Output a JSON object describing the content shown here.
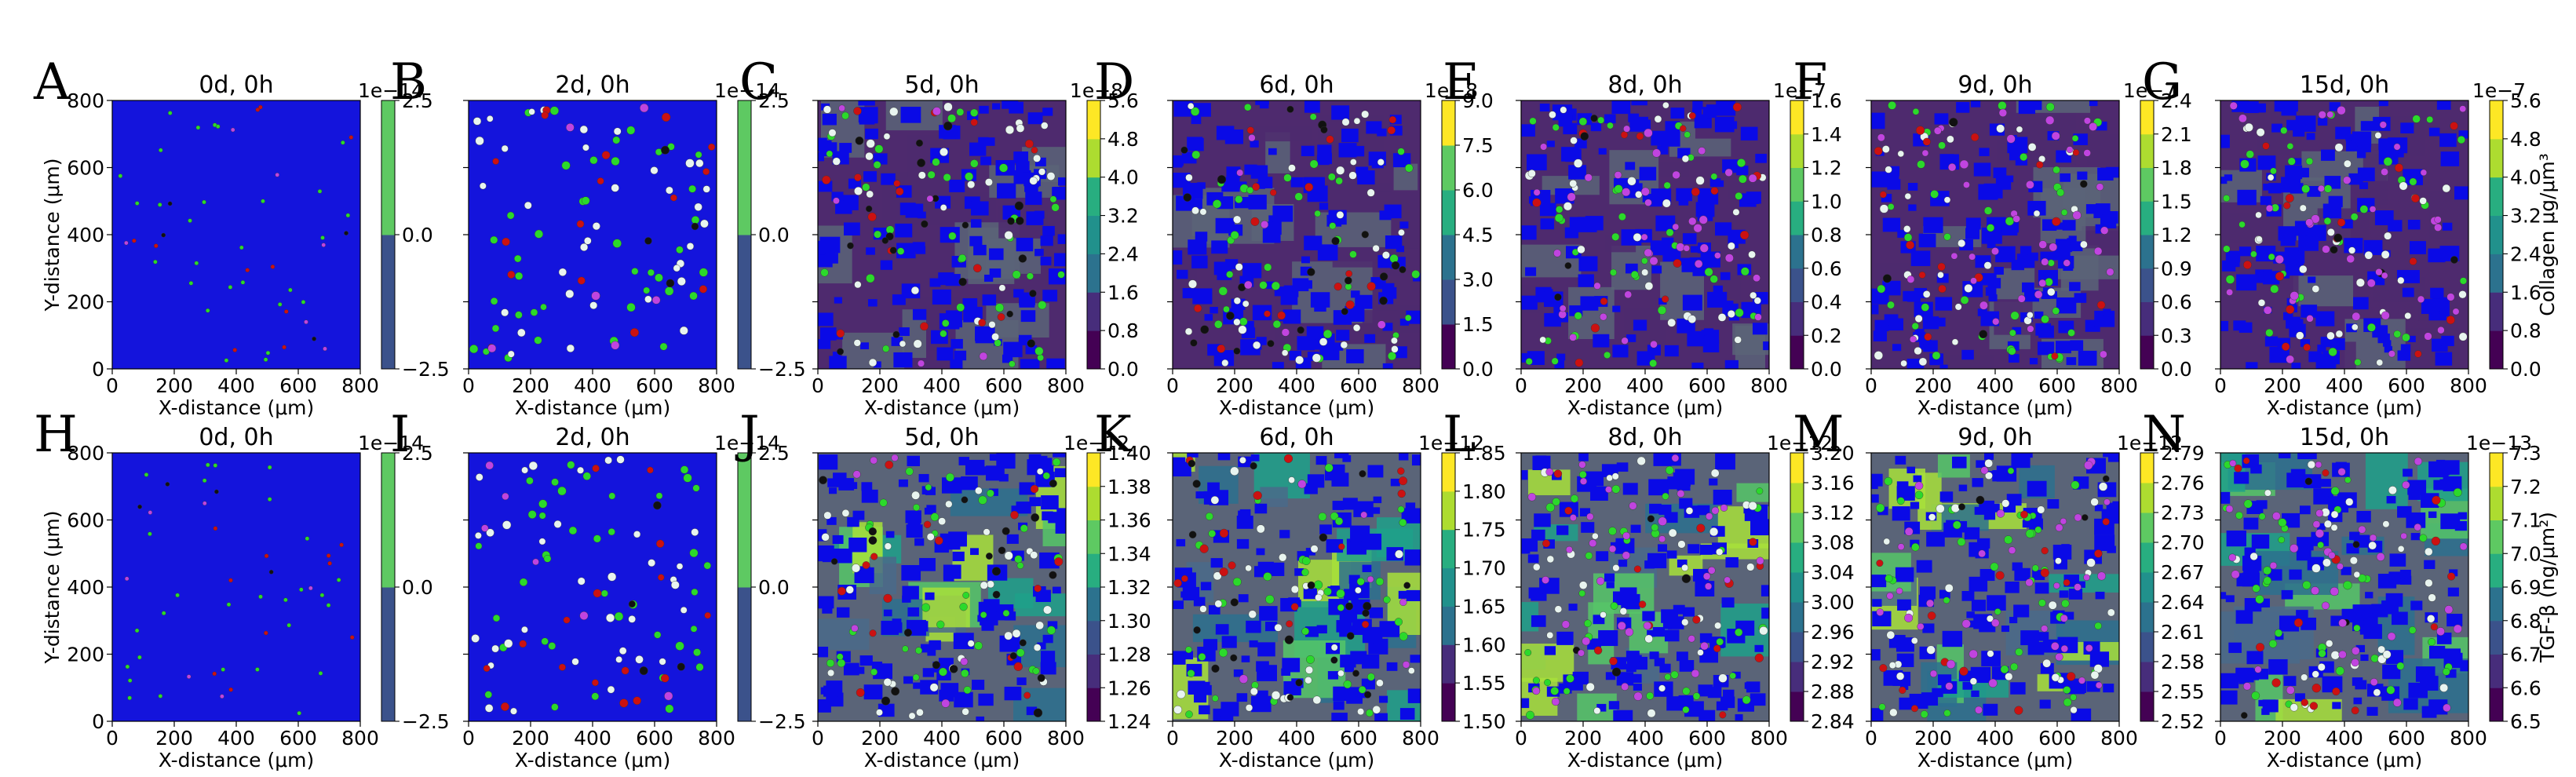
{
  "figure": {
    "colors": {
      "field_blue": "#1414dc",
      "cell_blue": "#0a0ae6",
      "dark_purple": "#4e2a6e",
      "gray": "#5a6478",
      "green_spot": "#2bd92b",
      "white_spot": "#e8f4f0",
      "black_spot": "#111111",
      "red_spot": "#cc1111",
      "magenta_spot": "#c044e0",
      "lime": "#a8e03a",
      "teal": "#1fa08a"
    }
  },
  "chart_data": [
    {
      "type": "heatmap",
      "letter": "A",
      "title": "0d, 0h",
      "xlabel": "X-distance ($\\mu m$)",
      "ylabel": "Y-distance ($\\mu m$)",
      "xticks": [
        "0",
        "200",
        "400",
        "600",
        "800"
      ],
      "yticks": [
        "0",
        "200",
        "400",
        "600",
        "800"
      ],
      "xlim": [
        0,
        800
      ],
      "ylim": [
        0,
        800
      ],
      "colorbar": {
        "scale_label": "1e−14",
        "ticks": [
          "−2.5",
          "0.0",
          "2.5"
        ],
        "tick_values": [
          -2.5,
          0.0,
          2.5
        ],
        "range": [
          -2.5,
          2.5
        ],
        "label": ""
      }
    },
    {
      "type": "heatmap",
      "letter": "B",
      "title": "2d, 0h",
      "xlabel": "X-distance ($\\mu m$)",
      "ylabel": "",
      "xticks": [
        "0",
        "200",
        "400",
        "600",
        "800"
      ],
      "yticks": [],
      "xlim": [
        0,
        800
      ],
      "ylim": [
        0,
        800
      ],
      "colorbar": {
        "scale_label": "1e−14",
        "ticks": [
          "−2.5",
          "0.0",
          "2.5"
        ],
        "tick_values": [
          -2.5,
          0.0,
          2.5
        ],
        "range": [
          -2.5,
          2.5
        ],
        "label": ""
      }
    },
    {
      "type": "heatmap",
      "letter": "C",
      "title": "5d, 0h",
      "xlabel": "X-distance ($\\mu m$)",
      "ylabel": "",
      "xticks": [
        "0",
        "200",
        "400",
        "600",
        "800"
      ],
      "yticks": [],
      "xlim": [
        0,
        800
      ],
      "ylim": [
        0,
        800
      ],
      "colorbar": {
        "scale_label": "1e−8",
        "ticks": [
          "0.0",
          "0.8",
          "1.6",
          "2.4",
          "3.2",
          "4.0",
          "4.8",
          "5.6"
        ],
        "tick_values": [
          0.0,
          0.8,
          1.6,
          2.4,
          3.2,
          4.0,
          4.8,
          5.6
        ],
        "range": [
          0.0,
          5.6
        ],
        "label": ""
      }
    },
    {
      "type": "heatmap",
      "letter": "D",
      "title": "6d, 0h",
      "xlabel": "X-distance ($\\mu m$)",
      "ylabel": "",
      "xticks": [
        "0",
        "200",
        "400",
        "600",
        "800"
      ],
      "yticks": [],
      "xlim": [
        0,
        800
      ],
      "ylim": [
        0,
        800
      ],
      "colorbar": {
        "scale_label": "1e−8",
        "ticks": [
          "0.0",
          "1.5",
          "3.0",
          "4.5",
          "6.0",
          "7.5",
          "9.0"
        ],
        "tick_values": [
          0.0,
          1.5,
          3.0,
          4.5,
          6.0,
          7.5,
          9.0
        ],
        "range": [
          0.0,
          9.0
        ],
        "label": ""
      }
    },
    {
      "type": "heatmap",
      "letter": "E",
      "title": "8d, 0h",
      "xlabel": "X-distance ($\\mu m$)",
      "ylabel": "",
      "xticks": [
        "0",
        "200",
        "400",
        "600",
        "800"
      ],
      "yticks": [],
      "xlim": [
        0,
        800
      ],
      "ylim": [
        0,
        800
      ],
      "colorbar": {
        "scale_label": "1e−7",
        "ticks": [
          "0.0",
          "0.2",
          "0.4",
          "0.6",
          "0.8",
          "1.0",
          "1.2",
          "1.4",
          "1.6"
        ],
        "tick_values": [
          0.0,
          0.2,
          0.4,
          0.6,
          0.8,
          1.0,
          1.2,
          1.4,
          1.6
        ],
        "range": [
          0.0,
          1.6
        ],
        "label": ""
      }
    },
    {
      "type": "heatmap",
      "letter": "F",
      "title": "9d, 0h",
      "xlabel": "X-distance ($\\mu m$)",
      "ylabel": "",
      "xticks": [
        "0",
        "200",
        "400",
        "600",
        "800"
      ],
      "yticks": [],
      "xlim": [
        0,
        800
      ],
      "ylim": [
        0,
        800
      ],
      "colorbar": {
        "scale_label": "1e−7",
        "ticks": [
          "0.0",
          "0.3",
          "0.6",
          "0.9",
          "1.2",
          "1.5",
          "1.8",
          "2.1",
          "2.4"
        ],
        "tick_values": [
          0.0,
          0.3,
          0.6,
          0.9,
          1.2,
          1.5,
          1.8,
          2.1,
          2.4
        ],
        "range": [
          0.0,
          2.4
        ],
        "label": ""
      }
    },
    {
      "type": "heatmap",
      "letter": "G",
      "title": "15d, 0h",
      "xlabel": "X-distance ($\\mu m$)",
      "ylabel": "",
      "xticks": [
        "0",
        "200",
        "400",
        "600",
        "800"
      ],
      "yticks": [],
      "xlim": [
        0,
        800
      ],
      "ylim": [
        0,
        800
      ],
      "colorbar": {
        "scale_label": "1e−7",
        "ticks": [
          "0.0",
          "0.8",
          "1.6",
          "2.4",
          "3.2",
          "4.0",
          "4.8",
          "5.6"
        ],
        "tick_values": [
          0.0,
          0.8,
          1.6,
          2.4,
          3.2,
          4.0,
          4.8,
          5.6
        ],
        "range": [
          0.0,
          5.6
        ],
        "label": "Collagen $\\mu g/\\mu m^3$"
      }
    },
    {
      "type": "heatmap",
      "letter": "H",
      "title": "0d, 0h",
      "xlabel": "X-distance ($\\mu m$)",
      "ylabel": "Y-distance ($\\mu m$)",
      "xticks": [
        "0",
        "200",
        "400",
        "600",
        "800"
      ],
      "yticks": [
        "0",
        "200",
        "400",
        "600",
        "800"
      ],
      "xlim": [
        0,
        800
      ],
      "ylim": [
        0,
        800
      ],
      "colorbar": {
        "scale_label": "1e−14",
        "ticks": [
          "−2.5",
          "0.0",
          "2.5"
        ],
        "tick_values": [
          -2.5,
          0.0,
          2.5
        ],
        "range": [
          -2.5,
          2.5
        ],
        "label": ""
      }
    },
    {
      "type": "heatmap",
      "letter": "I",
      "title": "2d, 0h",
      "xlabel": "X-distance ($\\mu m$)",
      "ylabel": "",
      "xticks": [
        "0",
        "200",
        "400",
        "600",
        "800"
      ],
      "yticks": [],
      "xlim": [
        0,
        800
      ],
      "ylim": [
        0,
        800
      ],
      "colorbar": {
        "scale_label": "1e−14",
        "ticks": [
          "−2.5",
          "0.0",
          "2.5"
        ],
        "tick_values": [
          -2.5,
          0.0,
          2.5
        ],
        "range": [
          -2.5,
          2.5
        ],
        "label": ""
      }
    },
    {
      "type": "heatmap",
      "letter": "J",
      "title": "5d, 0h",
      "xlabel": "X-distance ($\\mu m$)",
      "ylabel": "",
      "xticks": [
        "0",
        "200",
        "400",
        "600",
        "800"
      ],
      "yticks": [],
      "xlim": [
        0,
        800
      ],
      "ylim": [
        0,
        800
      ],
      "colorbar": {
        "scale_label": "1e−12",
        "ticks": [
          "1.24",
          "1.26",
          "1.28",
          "1.30",
          "1.32",
          "1.34",
          "1.36",
          "1.38",
          "1.40"
        ],
        "tick_values": [
          1.24,
          1.26,
          1.28,
          1.3,
          1.32,
          1.34,
          1.36,
          1.38,
          1.4
        ],
        "range": [
          1.24,
          1.4
        ],
        "label": ""
      }
    },
    {
      "type": "heatmap",
      "letter": "K",
      "title": "6d, 0h",
      "xlabel": "X-distance ($\\mu m$)",
      "ylabel": "",
      "xticks": [
        "0",
        "200",
        "400",
        "600",
        "800"
      ],
      "yticks": [],
      "xlim": [
        0,
        800
      ],
      "ylim": [
        0,
        800
      ],
      "colorbar": {
        "scale_label": "1e−12",
        "ticks": [
          "1.50",
          "1.55",
          "1.60",
          "1.65",
          "1.70",
          "1.75",
          "1.80",
          "1.85"
        ],
        "tick_values": [
          1.5,
          1.55,
          1.6,
          1.65,
          1.7,
          1.75,
          1.8,
          1.85
        ],
        "range": [
          1.5,
          1.85
        ],
        "label": ""
      }
    },
    {
      "type": "heatmap",
      "letter": "L",
      "title": "8d, 0h",
      "xlabel": "X-distance ($\\mu m$)",
      "ylabel": "",
      "xticks": [
        "0",
        "200",
        "400",
        "600",
        "800"
      ],
      "yticks": [],
      "xlim": [
        0,
        800
      ],
      "ylim": [
        0,
        800
      ],
      "colorbar": {
        "scale_label": "1e−12",
        "ticks": [
          "2.84",
          "2.88",
          "2.92",
          "2.96",
          "3.00",
          "3.04",
          "3.08",
          "3.12",
          "3.16",
          "3.20"
        ],
        "tick_values": [
          2.84,
          2.88,
          2.92,
          2.96,
          3.0,
          3.04,
          3.08,
          3.12,
          3.16,
          3.2
        ],
        "range": [
          2.84,
          3.2
        ],
        "label": ""
      }
    },
    {
      "type": "heatmap",
      "letter": "M",
      "title": "9d, 0h",
      "xlabel": "X-distance ($\\mu m$)",
      "ylabel": "",
      "xticks": [
        "0",
        "200",
        "400",
        "600",
        "800"
      ],
      "yticks": [],
      "xlim": [
        0,
        800
      ],
      "ylim": [
        0,
        800
      ],
      "colorbar": {
        "scale_label": "1e−12",
        "ticks": [
          "2.52",
          "2.55",
          "2.58",
          "2.61",
          "2.64",
          "2.67",
          "2.70",
          "2.73",
          "2.76",
          "2.79"
        ],
        "tick_values": [
          2.52,
          2.55,
          2.58,
          2.61,
          2.64,
          2.67,
          2.7,
          2.73,
          2.76,
          2.79
        ],
        "range": [
          2.52,
          2.79
        ],
        "label": ""
      }
    },
    {
      "type": "heatmap",
      "letter": "N",
      "title": "15d, 0h",
      "xlabel": "X-distance ($\\mu m$)",
      "ylabel": "",
      "xticks": [
        "0",
        "200",
        "400",
        "600",
        "800"
      ],
      "yticks": [],
      "xlim": [
        0,
        800
      ],
      "ylim": [
        0,
        800
      ],
      "colorbar": {
        "scale_label": "1e−13",
        "ticks": [
          "6.5",
          "6.6",
          "6.7",
          "6.8",
          "6.9",
          "7.0",
          "7.1",
          "7.2",
          "7.3"
        ],
        "tick_values": [
          6.5,
          6.6,
          6.7,
          6.8,
          6.9,
          7.0,
          7.1,
          7.2,
          7.3
        ],
        "range": [
          6.5,
          7.3
        ],
        "label": "TGF-β ($ng/\\mu m^2$)"
      }
    }
  ]
}
